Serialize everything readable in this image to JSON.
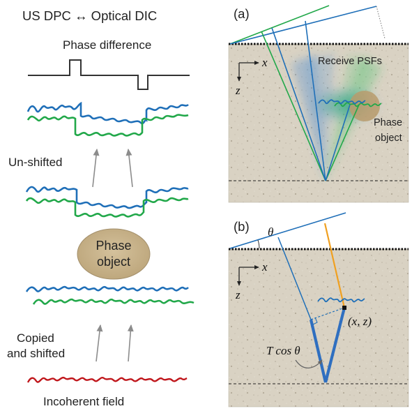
{
  "left_panel": {
    "title": "US DPC ↔ Optical DIC",
    "phase_difference_label": "Phase difference",
    "unshifted_label": "Un-shifted",
    "phase_object_label_line1": "Phase",
    "phase_object_label_line2": "object",
    "copied_label_line1": "Copied",
    "copied_label_line2": "and shifted",
    "incoherent_field_label": "Incoherent field"
  },
  "panel_a": {
    "tag": "(a)",
    "axis_x": "x",
    "axis_z": "z",
    "receive_psfs_label": "Receive PSFs",
    "phase_object_label_line1": "Phase",
    "phase_object_label_line2": "object"
  },
  "panel_b": {
    "tag": "(b)",
    "theta": "θ",
    "axis_x": "x",
    "axis_z": "z",
    "point_label": "(x, z)",
    "t_cos_theta": "T cos θ"
  },
  "colors": {
    "blue": "#1f6fb8",
    "green": "#22a84a",
    "red": "#c0171c",
    "orange": "#f0a020",
    "phase_object_fill": "#c9b48e",
    "tissue_fill": "#d8d1c2"
  }
}
